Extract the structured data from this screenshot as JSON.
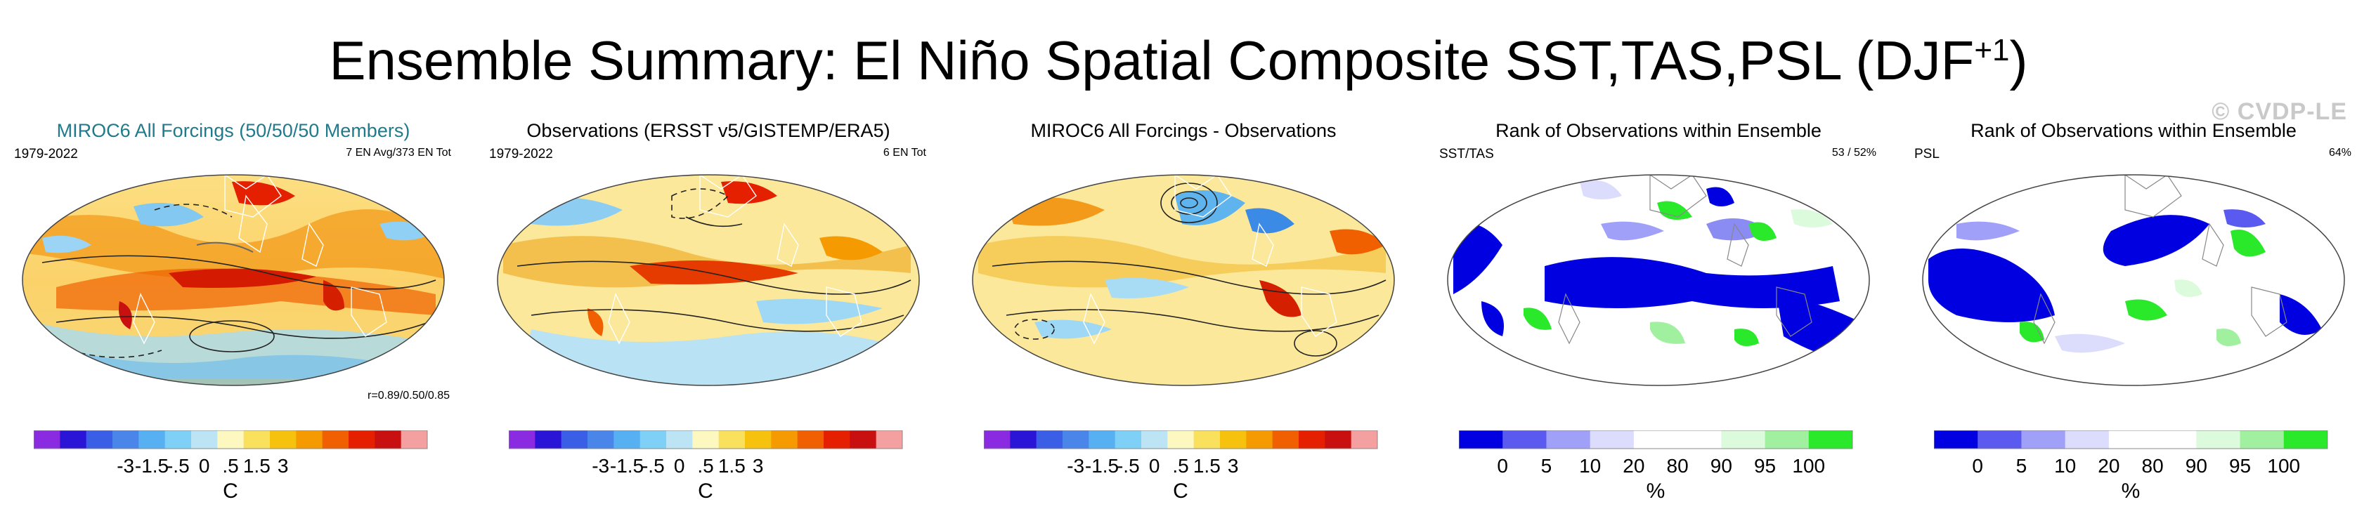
{
  "title": {
    "main": "Ensemble Summary: El Niño Spatial Composite SST,TAS,PSL (DJF",
    "sup": "+1",
    "close": ")"
  },
  "watermark": "© CVDP-LE",
  "colors": {
    "title_teal": "#1f7a8c"
  },
  "panels": [
    {
      "title": "MIROC6 All Forcings (50/50/50 Members)",
      "left_tag": "1979-2022",
      "right_tag": "7 EN Avg/373 EN Tot",
      "corr_note": "r=0.89/0.50/0.85",
      "colorbar": "temp"
    },
    {
      "title": "Observations (ERSST v5/GISTEMP/ERA5)",
      "left_tag": "1979-2022",
      "right_tag": "6 EN Tot",
      "colorbar": "temp"
    },
    {
      "title": "MIROC6 All Forcings - Observations",
      "colorbar": "temp"
    },
    {
      "title": "Rank of Observations within Ensemble",
      "left_tag": "SST/TAS",
      "right_tag": "53 /  52%",
      "colorbar": "rank"
    },
    {
      "title": "Rank of Observations within Ensemble",
      "left_tag": "PSL",
      "right_tag": "64%",
      "colorbar": "rank"
    }
  ],
  "temp_colorbar": {
    "unit": "C",
    "labels": [
      "-3",
      "-1.5",
      "-.5",
      "0",
      ".5",
      "1.5",
      "3"
    ],
    "colors": [
      "#8a2be2",
      "#2a14d6",
      "#3a5ee6",
      "#4a86ea",
      "#57b0f2",
      "#7fd0f6",
      "#bde4f4",
      "#fdf8c0",
      "#f9e15e",
      "#f6c20e",
      "#f59a00",
      "#f06000",
      "#e52000",
      "#c81010",
      "#f5a0a0"
    ]
  },
  "rank_colorbar": {
    "unit": "%",
    "labels": [
      "0",
      "5",
      "10",
      "20",
      "80",
      "90",
      "95",
      "100"
    ],
    "colors": [
      "#0000e0",
      "#5a5af0",
      "#a0a0f8",
      "#dcdcfc",
      "#ffffff",
      "#ffffff",
      "#dcfadc",
      "#a0f0a0",
      "#2ae82a"
    ]
  }
}
